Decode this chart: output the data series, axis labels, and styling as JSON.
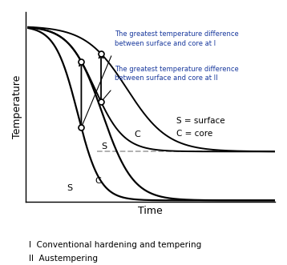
{
  "xlabel": "Time",
  "ylabel": "Temperature",
  "legend_text": "S = surface\nC = core",
  "footnote_line1": "I  Conventional hardening and tempering",
  "footnote_line2": "II  Austempering",
  "ann1_l1": "The greatest temperature difference",
  "ann1_l2": "between surface and core at I",
  "ann2_l1": "The greatest temperature difference",
  "ann2_l2": "between surface and core at II",
  "bg_color": "#ffffff",
  "curve_color": "#000000",
  "dashed_color": "#aaaaaa",
  "ann_color": "#1a3a9e"
}
